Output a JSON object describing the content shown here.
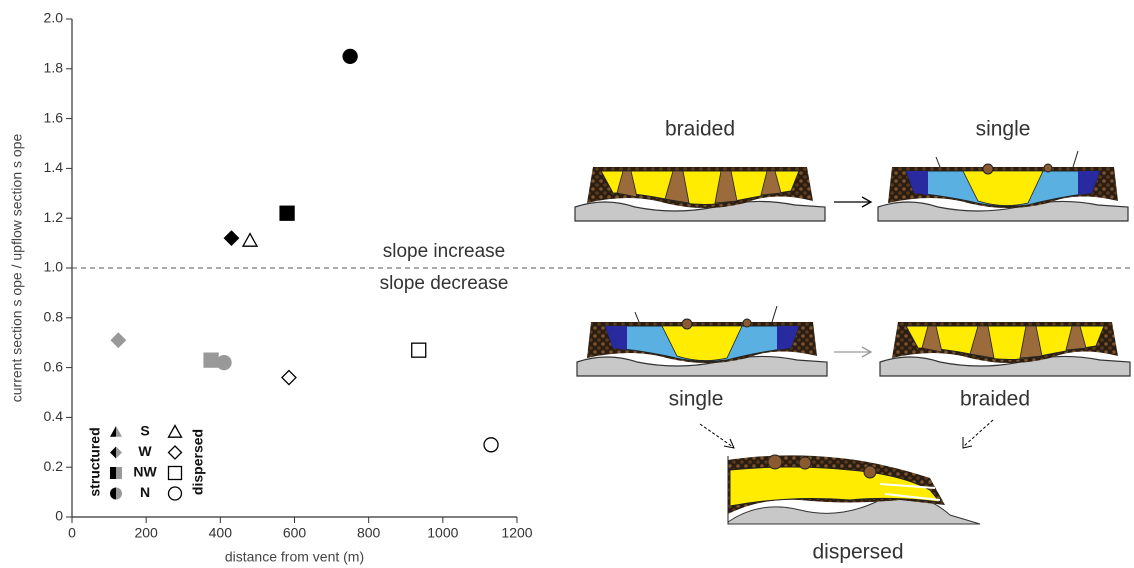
{
  "chart_data": {
    "type": "scatter",
    "xlabel": "distance from vent (m)",
    "ylabel": "current section s ope / upflow section s ope",
    "xlim": [
      0,
      1200
    ],
    "xticks": [
      0,
      200,
      400,
      600,
      800,
      1000,
      1200
    ],
    "ylim": [
      0,
      2
    ],
    "yticks": [
      0,
      0.2,
      0.4,
      0.6,
      0.8,
      {
        "value": 1,
        "label": "1.0"
      },
      1.2,
      1.4,
      1.6,
      1.8,
      {
        "value": 2,
        "label": "2.0"
      }
    ],
    "reference_line": 1,
    "annotations": [
      "slope increase",
      "slope decrease"
    ],
    "points": [
      {
        "x": 750,
        "y": 1.85,
        "shape": "circle",
        "fill": "#000000"
      },
      {
        "x": 580,
        "y": 1.22,
        "shape": "square",
        "fill": "#000000"
      },
      {
        "x": 430,
        "y": 1.12,
        "shape": "diamond",
        "fill": "#000000"
      },
      {
        "x": 480,
        "y": 1.11,
        "shape": "triangle",
        "fill": "#ffffff"
      },
      {
        "x": 125,
        "y": 0.71,
        "shape": "diamond",
        "fill": "#999999"
      },
      {
        "x": 375,
        "y": 0.63,
        "shape": "square",
        "fill": "#999999"
      },
      {
        "x": 410,
        "y": 0.62,
        "shape": "circle",
        "fill": "#999999"
      },
      {
        "x": 585,
        "y": 0.56,
        "shape": "diamond",
        "fill": "#ffffff"
      },
      {
        "x": 935,
        "y": 0.67,
        "shape": "square",
        "fill": "#ffffff"
      },
      {
        "x": 1130,
        "y": 0.29,
        "shape": "circle",
        "fill": "#ffffff"
      }
    ],
    "legend": {
      "structured": "structured",
      "dispersed": "dispersed",
      "entries": [
        {
          "label": "S",
          "shape": "triangle"
        },
        {
          "label": "W",
          "shape": "diamond"
        },
        {
          "label": "NW",
          "shape": "square"
        },
        {
          "label": "N",
          "shape": "circle"
        }
      ]
    }
  },
  "diagrams": {
    "top_left": "braided",
    "top_right": "single",
    "bottom_left": "single",
    "bottom_right": "braided",
    "bottom": "dispersed"
  }
}
